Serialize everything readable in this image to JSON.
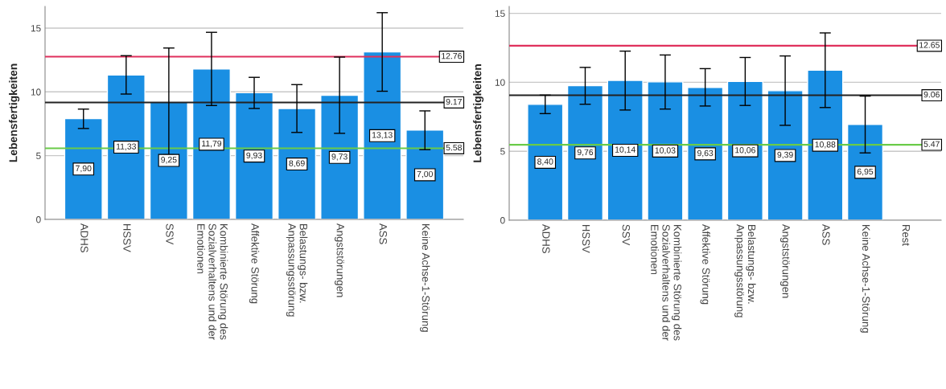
{
  "chart_data": [
    {
      "type": "bar",
      "ylabel": "Lebensfertigkeiten",
      "categories": [
        "ADHS",
        "HSSV",
        "SSV",
        "Kombinierte Störung des\nSozialverhaltens und der\nEmotionen",
        "Affektive Störung",
        "Belastungs- bzw.\nAnpassungsstörung",
        "Angststörungen",
        "ASS",
        "Keine Achse-1-Störung"
      ],
      "values": [
        7.9,
        11.33,
        9.25,
        11.79,
        9.93,
        8.69,
        9.73,
        13.13,
        7.0
      ],
      "value_labels": [
        "7,90",
        "11,33",
        "9,25",
        "11,79",
        "9,93",
        "8,69",
        "9,73",
        "13,13",
        "7,00"
      ],
      "errors": [
        [
          7.13,
          8.65
        ],
        [
          9.83,
          12.84
        ],
        [
          5.07,
          13.44
        ],
        [
          8.93,
          14.67
        ],
        [
          8.7,
          11.14
        ],
        [
          6.82,
          10.57
        ],
        [
          6.75,
          12.73
        ],
        [
          10.05,
          16.21
        ],
        [
          5.47,
          8.51
        ]
      ],
      "color": "#1a8fe3",
      "ylim": [
        0,
        16.7
      ],
      "yticks": [
        0,
        5,
        10,
        15
      ],
      "grid": "y",
      "ref_lines": [
        {
          "axis": "y",
          "value": 12.76,
          "label": "12.76",
          "color": "#e0305c"
        },
        {
          "axis": "y",
          "value": 9.17,
          "label": "9.17",
          "color": "#222222"
        },
        {
          "axis": "y",
          "value": 5.58,
          "label": "5.58",
          "color": "#6acb48"
        }
      ]
    },
    {
      "type": "bar",
      "ylabel": "Lebensfertigkeiten",
      "categories": [
        "ADHS",
        "HSSV",
        "SSV",
        "Kombinierte Störung des\nSozialverhaltens und der\nEmotionen",
        "Affektive Störung",
        "Belastungs- bzw.\nAnpassungsstörung",
        "Angststörungen",
        "ASS",
        "Keine Achse-1-Störung",
        "Rest"
      ],
      "values": [
        8.4,
        9.76,
        10.14,
        10.03,
        9.63,
        10.06,
        9.39,
        10.88,
        6.95,
        null
      ],
      "value_labels": [
        "8,40",
        "9,76",
        "10,14",
        "10,03",
        "9,63",
        "10,06",
        "9,39",
        "10,88",
        "6,95",
        null
      ],
      "errors": [
        [
          7.73,
          9.07
        ],
        [
          8.41,
          11.08
        ],
        [
          7.99,
          12.26
        ],
        [
          8.06,
          11.98
        ],
        [
          8.28,
          10.99
        ],
        [
          8.32,
          11.8
        ],
        [
          6.88,
          11.91
        ],
        [
          8.17,
          13.58
        ],
        [
          4.88,
          9.0
        ],
        null
      ],
      "color": "#1a8fe3",
      "ylim": [
        0,
        15.5
      ],
      "yticks": [
        0,
        5,
        10,
        15
      ],
      "grid": "y",
      "ref_lines": [
        {
          "axis": "y",
          "value": 12.65,
          "label": "12.65",
          "color": "#e0305c"
        },
        {
          "axis": "y",
          "value": 9.06,
          "label": "9.06",
          "color": "#222222"
        },
        {
          "axis": "y",
          "value": 5.47,
          "label": "5.47",
          "color": "#6acb48"
        }
      ]
    }
  ]
}
